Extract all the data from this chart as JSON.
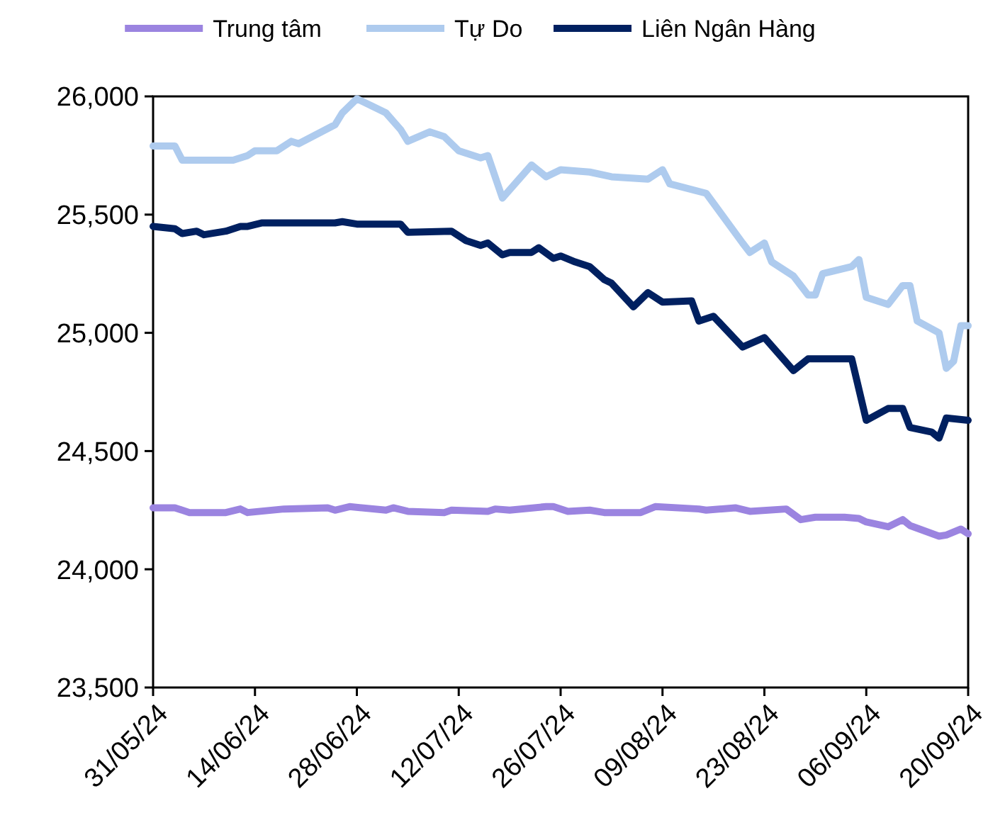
{
  "chart_data": {
    "type": "line",
    "legend": "top",
    "grid": false,
    "line_style": "solid",
    "xlim": [
      "2024-05-31",
      "2024-09-20"
    ],
    "xticks": [
      {
        "value": "2024-05-31",
        "label": "31/05/24"
      },
      {
        "value": "2024-06-14",
        "label": "14/06/24"
      },
      {
        "value": "2024-06-28",
        "label": "28/06/24"
      },
      {
        "value": "2024-07-12",
        "label": "12/07/24"
      },
      {
        "value": "2024-07-26",
        "label": "26/07/24"
      },
      {
        "value": "2024-08-09",
        "label": "09/08/24"
      },
      {
        "value": "2024-08-23",
        "label": "23/08/24"
      },
      {
        "value": "2024-09-06",
        "label": "06/09/24"
      },
      {
        "value": "2024-09-20",
        "label": "20/09/24"
      }
    ],
    "ylim": [
      23500,
      26000
    ],
    "yticks": [
      {
        "value": 23500,
        "label": "23,500"
      },
      {
        "value": 24000,
        "label": "24,000"
      },
      {
        "value": 24500,
        "label": "24,500"
      },
      {
        "value": 25000,
        "label": "25,000"
      },
      {
        "value": 25500,
        "label": "25,500"
      },
      {
        "value": 26000,
        "label": "26,000"
      }
    ],
    "series": [
      {
        "name": "Trung tâm",
        "color": "#9b84e0",
        "x": [
          "2024-05-31",
          "2024-06-03",
          "2024-06-05",
          "2024-06-10",
          "2024-06-12",
          "2024-06-13",
          "2024-06-18",
          "2024-06-24",
          "2024-06-25",
          "2024-06-27",
          "2024-07-02",
          "2024-07-03",
          "2024-07-05",
          "2024-07-10",
          "2024-07-11",
          "2024-07-16",
          "2024-07-17",
          "2024-07-19",
          "2024-07-24",
          "2024-07-25",
          "2024-07-27",
          "2024-07-30",
          "2024-08-01",
          "2024-08-06",
          "2024-08-08",
          "2024-08-14",
          "2024-08-15",
          "2024-08-19",
          "2024-08-21",
          "2024-08-26",
          "2024-08-28",
          "2024-08-30",
          "2024-09-03",
          "2024-09-05",
          "2024-09-06",
          "2024-09-09",
          "2024-09-11",
          "2024-09-12",
          "2024-09-16",
          "2024-09-17",
          "2024-09-19",
          "2024-09-20"
        ],
        "values": [
          24260,
          24260,
          24240,
          24240,
          24255,
          24240,
          24255,
          24260,
          24250,
          24265,
          24250,
          24260,
          24245,
          24240,
          24250,
          24245,
          24255,
          24250,
          24265,
          24265,
          24245,
          24250,
          24240,
          24240,
          24265,
          24255,
          24250,
          24260,
          24245,
          24255,
          24210,
          24220,
          24220,
          24215,
          24200,
          24180,
          24210,
          24185,
          24140,
          24145,
          24170,
          24150
        ]
      },
      {
        "name": "Tự Do",
        "color": "#aecbee",
        "x": [
          "2024-05-31",
          "2024-06-03",
          "2024-06-04",
          "2024-06-11",
          "2024-06-13",
          "2024-06-14",
          "2024-06-17",
          "2024-06-19",
          "2024-06-20",
          "2024-06-25",
          "2024-06-26",
          "2024-06-28",
          "2024-06-30",
          "2024-07-02",
          "2024-07-04",
          "2024-07-05",
          "2024-07-08",
          "2024-07-10",
          "2024-07-12",
          "2024-07-15",
          "2024-07-16",
          "2024-07-18",
          "2024-07-22",
          "2024-07-24",
          "2024-07-26",
          "2024-07-30",
          "2024-08-02",
          "2024-08-07",
          "2024-08-09",
          "2024-08-10",
          "2024-08-15",
          "2024-08-20",
          "2024-08-21",
          "2024-08-23",
          "2024-08-24",
          "2024-08-27",
          "2024-08-29",
          "2024-08-30",
          "2024-08-31",
          "2024-09-04",
          "2024-09-05",
          "2024-09-06",
          "2024-09-09",
          "2024-09-11",
          "2024-09-12",
          "2024-09-13",
          "2024-09-16",
          "2024-09-17",
          "2024-09-18",
          "2024-09-19",
          "2024-09-20"
        ],
        "values": [
          25790,
          25790,
          25730,
          25730,
          25750,
          25770,
          25770,
          25810,
          25800,
          25880,
          25930,
          25990,
          25960,
          25930,
          25860,
          25810,
          25850,
          25830,
          25770,
          25740,
          25750,
          25570,
          25710,
          25660,
          25690,
          25680,
          25660,
          25650,
          25690,
          25630,
          25590,
          25380,
          25340,
          25380,
          25300,
          25240,
          25160,
          25160,
          25250,
          25280,
          25310,
          25150,
          25120,
          25200,
          25200,
          25050,
          25000,
          24850,
          24880,
          25030,
          25030
        ]
      },
      {
        "name": "Liên Ngân Hàng",
        "color": "#002060",
        "x": [
          "2024-05-31",
          "2024-06-03",
          "2024-06-04",
          "2024-06-06",
          "2024-06-07",
          "2024-06-10",
          "2024-06-12",
          "2024-06-13",
          "2024-06-15",
          "2024-06-25",
          "2024-06-26",
          "2024-06-28",
          "2024-07-04",
          "2024-07-05",
          "2024-07-11",
          "2024-07-13",
          "2024-07-15",
          "2024-07-16",
          "2024-07-18",
          "2024-07-19",
          "2024-07-22",
          "2024-07-23",
          "2024-07-25",
          "2024-07-26",
          "2024-07-28",
          "2024-07-30",
          "2024-08-01",
          "2024-08-02",
          "2024-08-05",
          "2024-08-07",
          "2024-08-09",
          "2024-08-13",
          "2024-08-14",
          "2024-08-16",
          "2024-08-20",
          "2024-08-23",
          "2024-08-27",
          "2024-08-29",
          "2024-09-04",
          "2024-09-06",
          "2024-09-09",
          "2024-09-11",
          "2024-09-12",
          "2024-09-15",
          "2024-09-16",
          "2024-09-17",
          "2024-09-20"
        ],
        "values": [
          25450,
          25440,
          25420,
          25430,
          25415,
          25430,
          25450,
          25450,
          25465,
          25465,
          25470,
          25460,
          25460,
          25425,
          25430,
          25390,
          25370,
          25380,
          25330,
          25340,
          25340,
          25360,
          25315,
          25325,
          25300,
          25280,
          25225,
          25210,
          25110,
          25170,
          25130,
          25135,
          25050,
          25070,
          24940,
          24980,
          24840,
          24890,
          24890,
          24630,
          24680,
          24680,
          24600,
          24580,
          24555,
          24640,
          24630
        ]
      }
    ]
  }
}
